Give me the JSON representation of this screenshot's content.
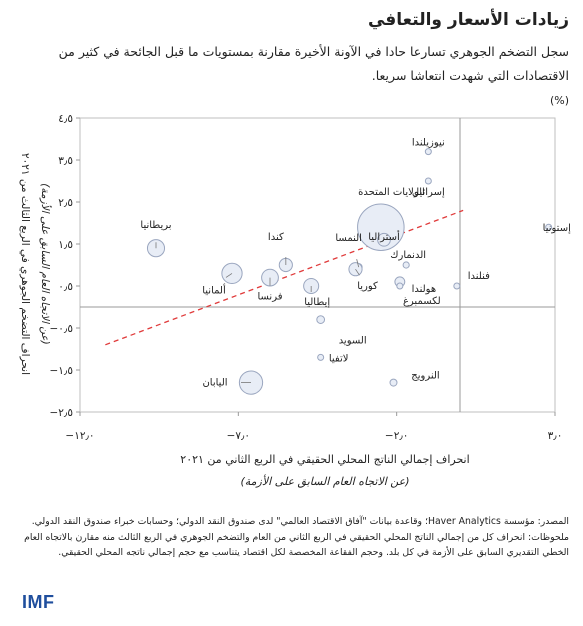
{
  "header": {
    "title": "زيادات الأسعار والتعافي",
    "subtitle": "سجل التضخم الجوهري تسارعا حادا في الآونة الأخيرة مقارنة بمستويات ما قبل الجائحة في كثير من الاقتصادات التي شهدت انتعاشا سريعا.",
    "unit": "(%)"
  },
  "chart_data": {
    "type": "scatter",
    "xlabel": "انحراف إجمالي الناتج المحلي الحقيقي في الربع الثاني من ٢٠٢١",
    "xlabel_sub": "(عن الاتجاه العام السابق على الأزمة)",
    "ylabel": "انحراف التضخم الجوهري في الربع الثالث من ٢٠٢١",
    "ylabel_sub": "(عن الاتجاه العام السابق على الأزمة)",
    "xlim": [
      -12,
      3
    ],
    "ylim": [
      -2.5,
      4.5
    ],
    "xticks": [
      {
        "v": -12,
        "label": "−١٢٫٠"
      },
      {
        "v": -7,
        "label": "−٧٫٠"
      },
      {
        "v": -2,
        "label": "−٢٫٠"
      },
      {
        "v": 3,
        "label": "٣٫٠"
      }
    ],
    "yticks": [
      {
        "v": 4.5,
        "label": "٤٫٥"
      },
      {
        "v": 3.5,
        "label": "٣٫٥"
      },
      {
        "v": 2.5,
        "label": "٢٫٥"
      },
      {
        "v": 1.5,
        "label": "١٫٥"
      },
      {
        "v": 0.5,
        "label": "٠٫٥"
      },
      {
        "v": -0.5,
        "label": "−٠٫٥"
      },
      {
        "v": -1.5,
        "label": "−١٫٥"
      },
      {
        "v": -2.5,
        "label": "−٢٫٥"
      }
    ],
    "trend": {
      "x": [
        -11.2,
        0.1
      ],
      "y": [
        -0.9,
        2.3
      ]
    },
    "points": [
      {
        "label": "نيوزيلندا",
        "x": -1.0,
        "y": 3.7,
        "size": 0.05
      },
      {
        "label": "إسرائيل",
        "x": -1.0,
        "y": 3.0,
        "size": 0.1
      },
      {
        "label": "الولايات المتحدة",
        "x": -2.5,
        "y": 1.9,
        "size": 20
      },
      {
        "label": "أستراليا",
        "x": -2.4,
        "y": 1.6,
        "size": 1.5
      },
      {
        "label": "إستونيا",
        "x": 2.8,
        "y": 1.9,
        "size": 0.03
      },
      {
        "label": "بريطانيا",
        "x": -9.6,
        "y": 1.4,
        "size": 2.7
      },
      {
        "label": "كندا",
        "x": -5.5,
        "y": 1.0,
        "size": 1.6
      },
      {
        "label": "النمسا",
        "x": -3.2,
        "y": 0.95,
        "size": 0.45
      },
      {
        "label": "ألمانيا",
        "x": -7.2,
        "y": 0.8,
        "size": 3.8
      },
      {
        "label": "فرنسا",
        "x": -6.0,
        "y": 0.7,
        "size": 2.6
      },
      {
        "label": "إيطاليا",
        "x": -4.7,
        "y": 0.5,
        "size": 2.1
      },
      {
        "label": "كوريا",
        "x": -3.3,
        "y": 0.9,
        "size": 1.6
      },
      {
        "label": "الدنمارك",
        "x": -1.7,
        "y": 1.0,
        "size": 0.35
      },
      {
        "label": "هولندا",
        "x": -1.9,
        "y": 0.6,
        "size": 0.9
      },
      {
        "label": "فنلندا",
        "x": -0.1,
        "y": 0.5,
        "size": 0.28
      },
      {
        "label": "لكسمبرغ",
        "x": -1.9,
        "y": 0.5,
        "size": 0.07
      },
      {
        "label": "السويد",
        "x": -4.4,
        "y": -0.3,
        "size": 0.55
      },
      {
        "label": "لاتفيا",
        "x": -4.4,
        "y": -1.2,
        "size": 0.03
      },
      {
        "label": "النرويج",
        "x": -2.1,
        "y": -1.8,
        "size": 0.45
      },
      {
        "label": "اليابان",
        "x": -6.6,
        "y": -1.8,
        "size": 5.0
      }
    ]
  },
  "notes": {
    "source": "المصدر: مؤسسة Haver Analytics؛ وقاعدة بيانات \"آفاق الاقتصاد العالمي\" لدى صندوق النقد الدولي؛ وحسابات خبراء صندوق النقد الدولي.",
    "note": "ملحوظات: انحراف كل من إجمالي الناتج المحلي الحقيقي في الربع الثاني من العام والتضخم الجوهري في الربع الثالث منه مقارن بالاتجاه العام الخطي التقديري السابق على الأزمة في كل بلد. وحجم الفقاعة المخصصة لكل اقتصاد يتناسب مع حجم إجمالي ناتجه المحلي الحقيقي."
  },
  "logo": "IMF",
  "colors": {
    "bubble_fill": "#e8edf6",
    "bubble_stroke": "#9aa6bf",
    "trend": "#e03a3a",
    "logo": "#1f4e9d"
  }
}
